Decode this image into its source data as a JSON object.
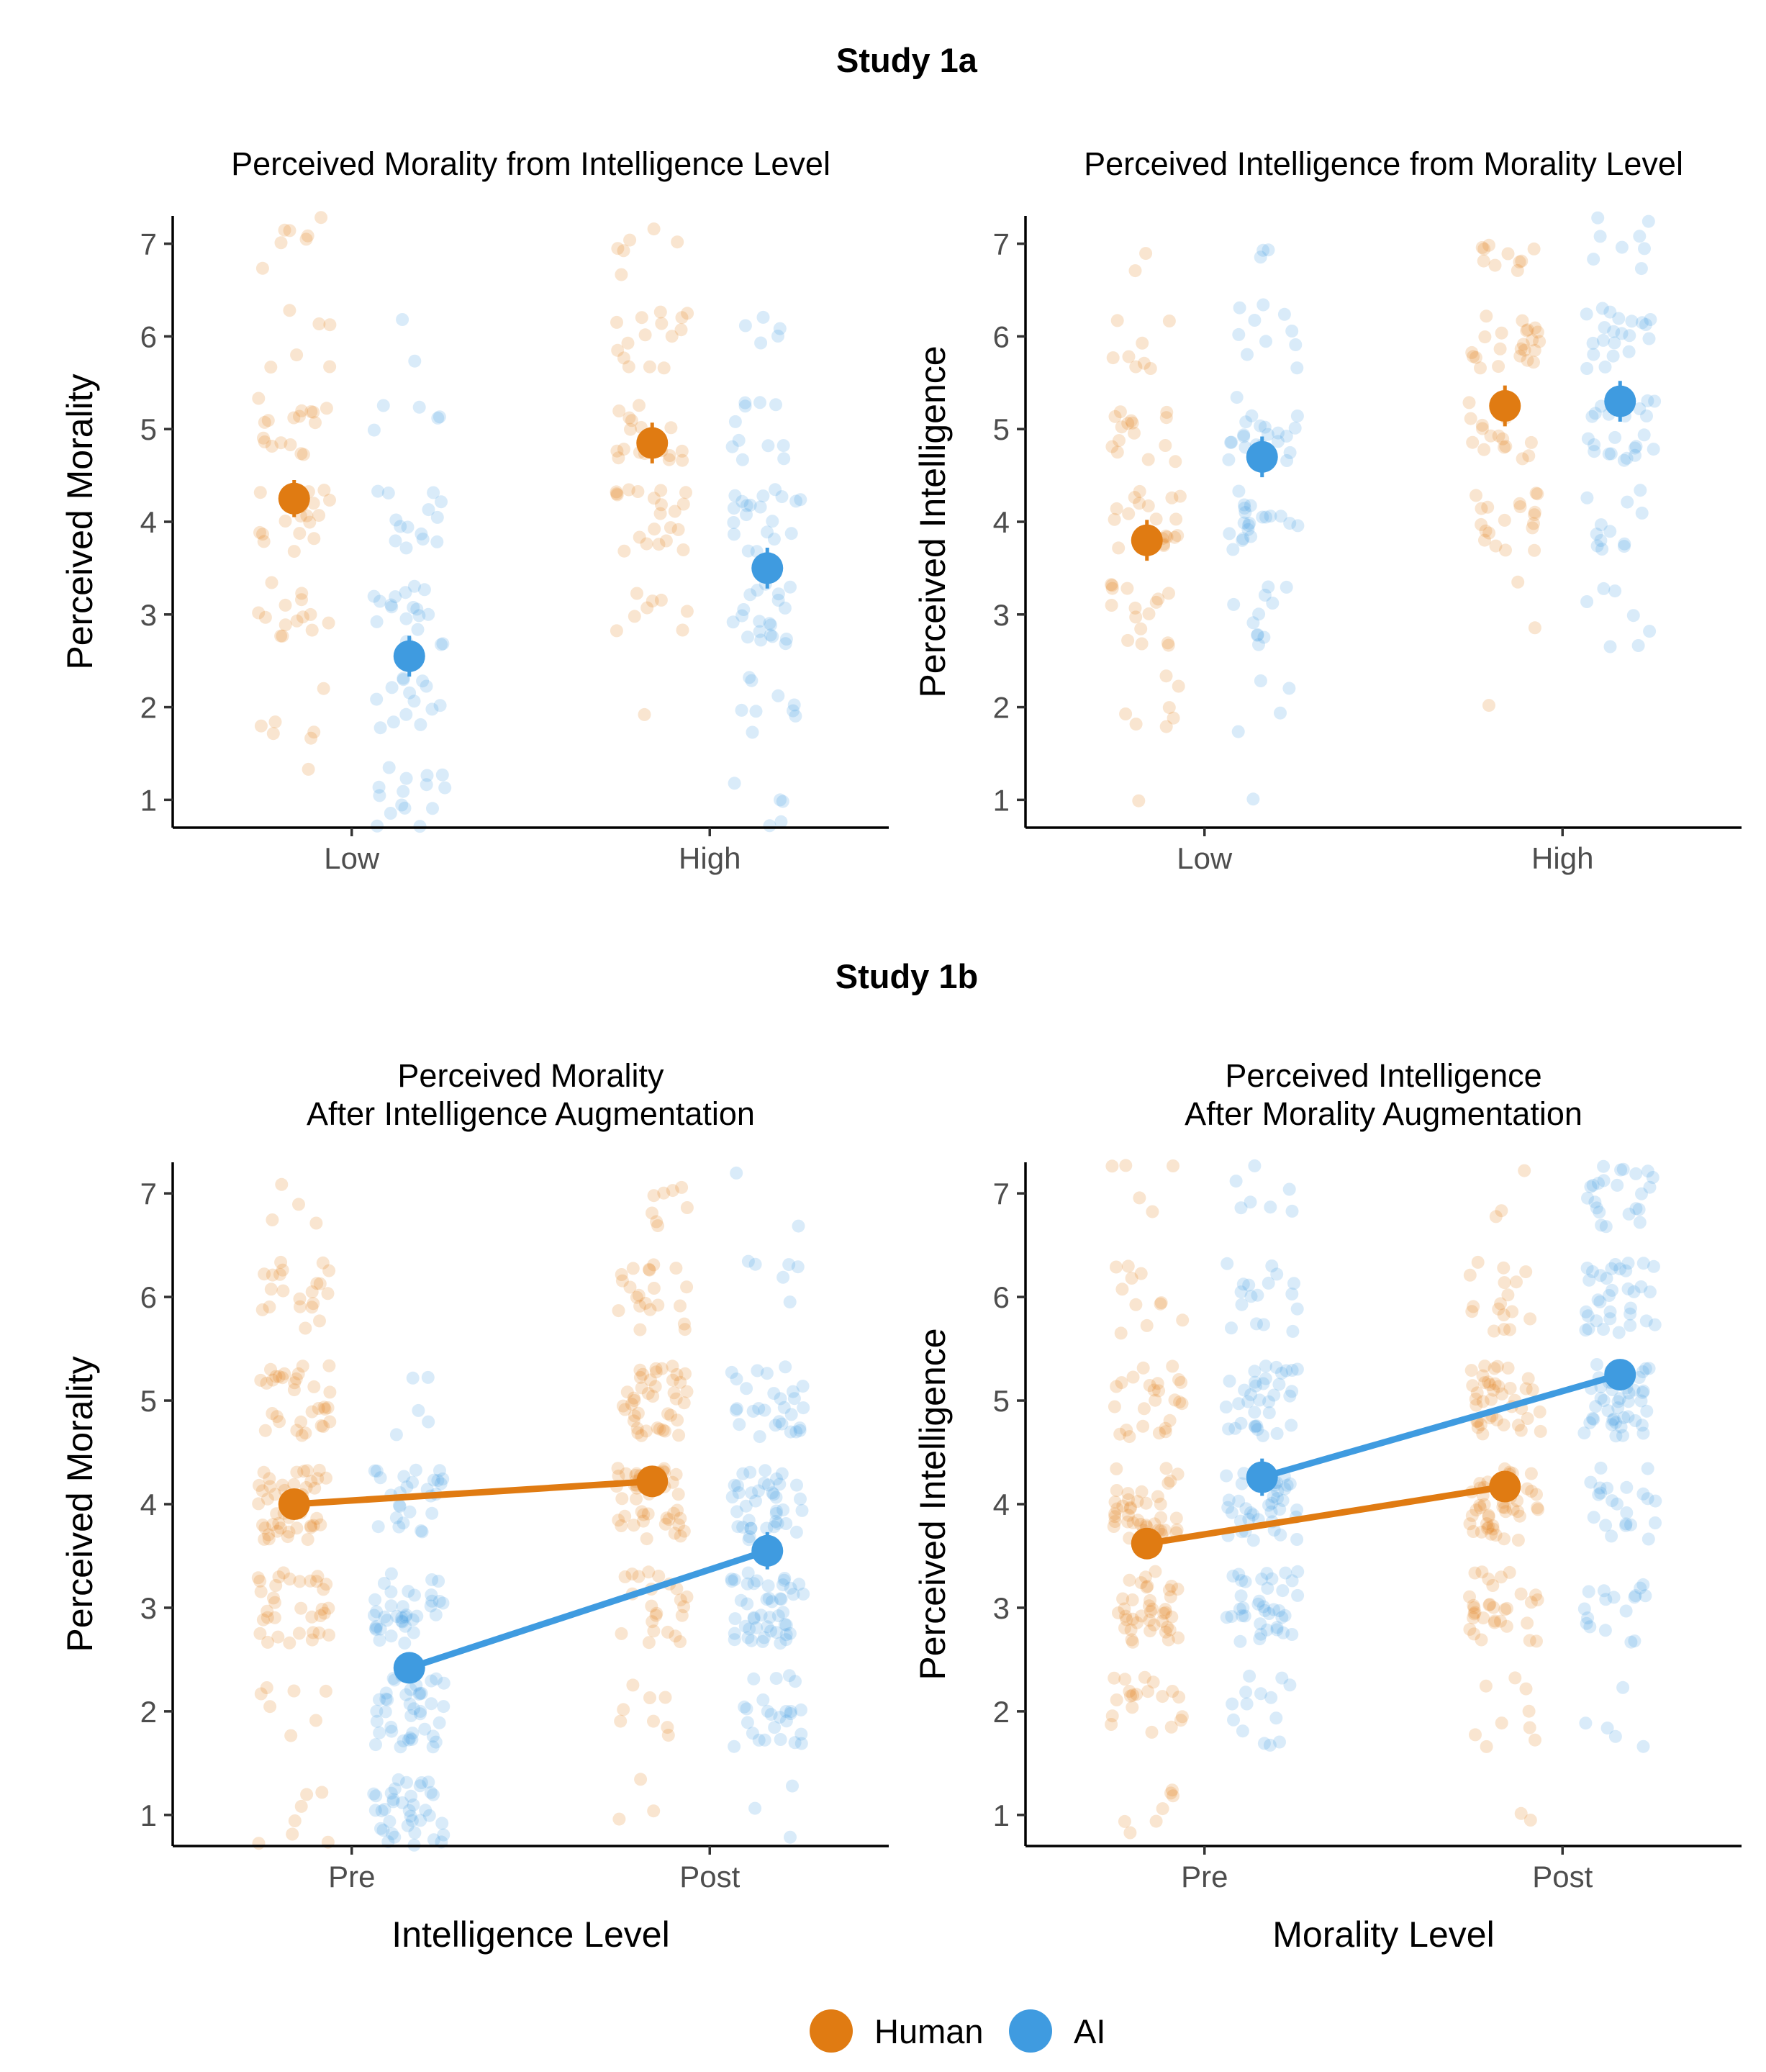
{
  "colors": {
    "Human": "#E07B12",
    "AI": "#3F9BE0"
  },
  "studies": [
    {
      "key": "1a",
      "title": "Study 1a"
    },
    {
      "key": "1b",
      "title": "Study 1b"
    }
  ],
  "legend": {
    "items": [
      {
        "label": "Human",
        "color": "#E07B12"
      },
      {
        "label": "AI",
        "color": "#3F9BE0"
      }
    ]
  },
  "chart_data": [
    {
      "type": "scatter",
      "study": "Study 1a",
      "title": "Perceived Morality from Intelligence Level",
      "title_lines": [
        "Perceived Morality from Intelligence Level"
      ],
      "xlabel": "",
      "ylabel": "Perceived Morality",
      "categories": [
        "Low",
        "High"
      ],
      "yticks": [
        1,
        2,
        3,
        4,
        5,
        6,
        7
      ],
      "ylim": [
        0.7,
        7.3
      ],
      "connect_means": false,
      "series": [
        {
          "name": "Human",
          "means": [
            4.25,
            4.85
          ],
          "se": [
            0.2,
            0.22
          ],
          "point_count": 70
        },
        {
          "name": "AI",
          "means": [
            2.55,
            3.5
          ],
          "se": [
            0.22,
            0.22
          ],
          "point_count": 70
        }
      ]
    },
    {
      "type": "scatter",
      "study": "Study 1a",
      "title": "Perceived Intelligence from Morality Level",
      "title_lines": [
        "Perceived Intelligence from Morality Level"
      ],
      "xlabel": "",
      "ylabel": "Perceived Intelligence",
      "categories": [
        "Low",
        "High"
      ],
      "yticks": [
        1,
        2,
        3,
        4,
        5,
        6,
        7
      ],
      "ylim": [
        0.7,
        7.3
      ],
      "connect_means": false,
      "series": [
        {
          "name": "Human",
          "means": [
            3.8,
            5.25
          ],
          "se": [
            0.22,
            0.22
          ],
          "point_count": 70
        },
        {
          "name": "AI",
          "means": [
            4.7,
            5.3
          ],
          "se": [
            0.22,
            0.22
          ],
          "point_count": 70
        }
      ]
    },
    {
      "type": "scatter",
      "study": "Study 1b",
      "title": "Perceived Morality After Intelligence Augmentation",
      "title_lines": [
        "Perceived Morality",
        "After Intelligence Augmentation"
      ],
      "xlabel": "Intelligence Level",
      "ylabel": "Perceived Morality",
      "categories": [
        "Pre",
        "Post"
      ],
      "yticks": [
        1,
        2,
        3,
        4,
        5,
        6,
        7
      ],
      "ylim": [
        0.7,
        7.3
      ],
      "connect_means": true,
      "series": [
        {
          "name": "Human",
          "means": [
            4.0,
            4.22
          ],
          "se": [
            0.12,
            0.12
          ],
          "point_count": 150
        },
        {
          "name": "AI",
          "means": [
            2.42,
            3.55
          ],
          "se": [
            0.15,
            0.18
          ],
          "point_count": 150
        }
      ]
    },
    {
      "type": "scatter",
      "study": "Study 1b",
      "title": "Perceived Intelligence After Morality Augmentation",
      "title_lines": [
        "Perceived Intelligence",
        "After Morality Augmentation"
      ],
      "xlabel": "Morality Level",
      "ylabel": "Perceived Intelligence",
      "categories": [
        "Pre",
        "Post"
      ],
      "yticks": [
        1,
        2,
        3,
        4,
        5,
        6,
        7
      ],
      "ylim": [
        0.7,
        7.3
      ],
      "connect_means": true,
      "series": [
        {
          "name": "Human",
          "means": [
            3.62,
            4.17
          ],
          "se": [
            0.12,
            0.12
          ],
          "point_count": 150
        },
        {
          "name": "AI",
          "means": [
            4.26,
            5.25
          ],
          "se": [
            0.18,
            0.15
          ],
          "point_count": 150
        }
      ]
    }
  ]
}
